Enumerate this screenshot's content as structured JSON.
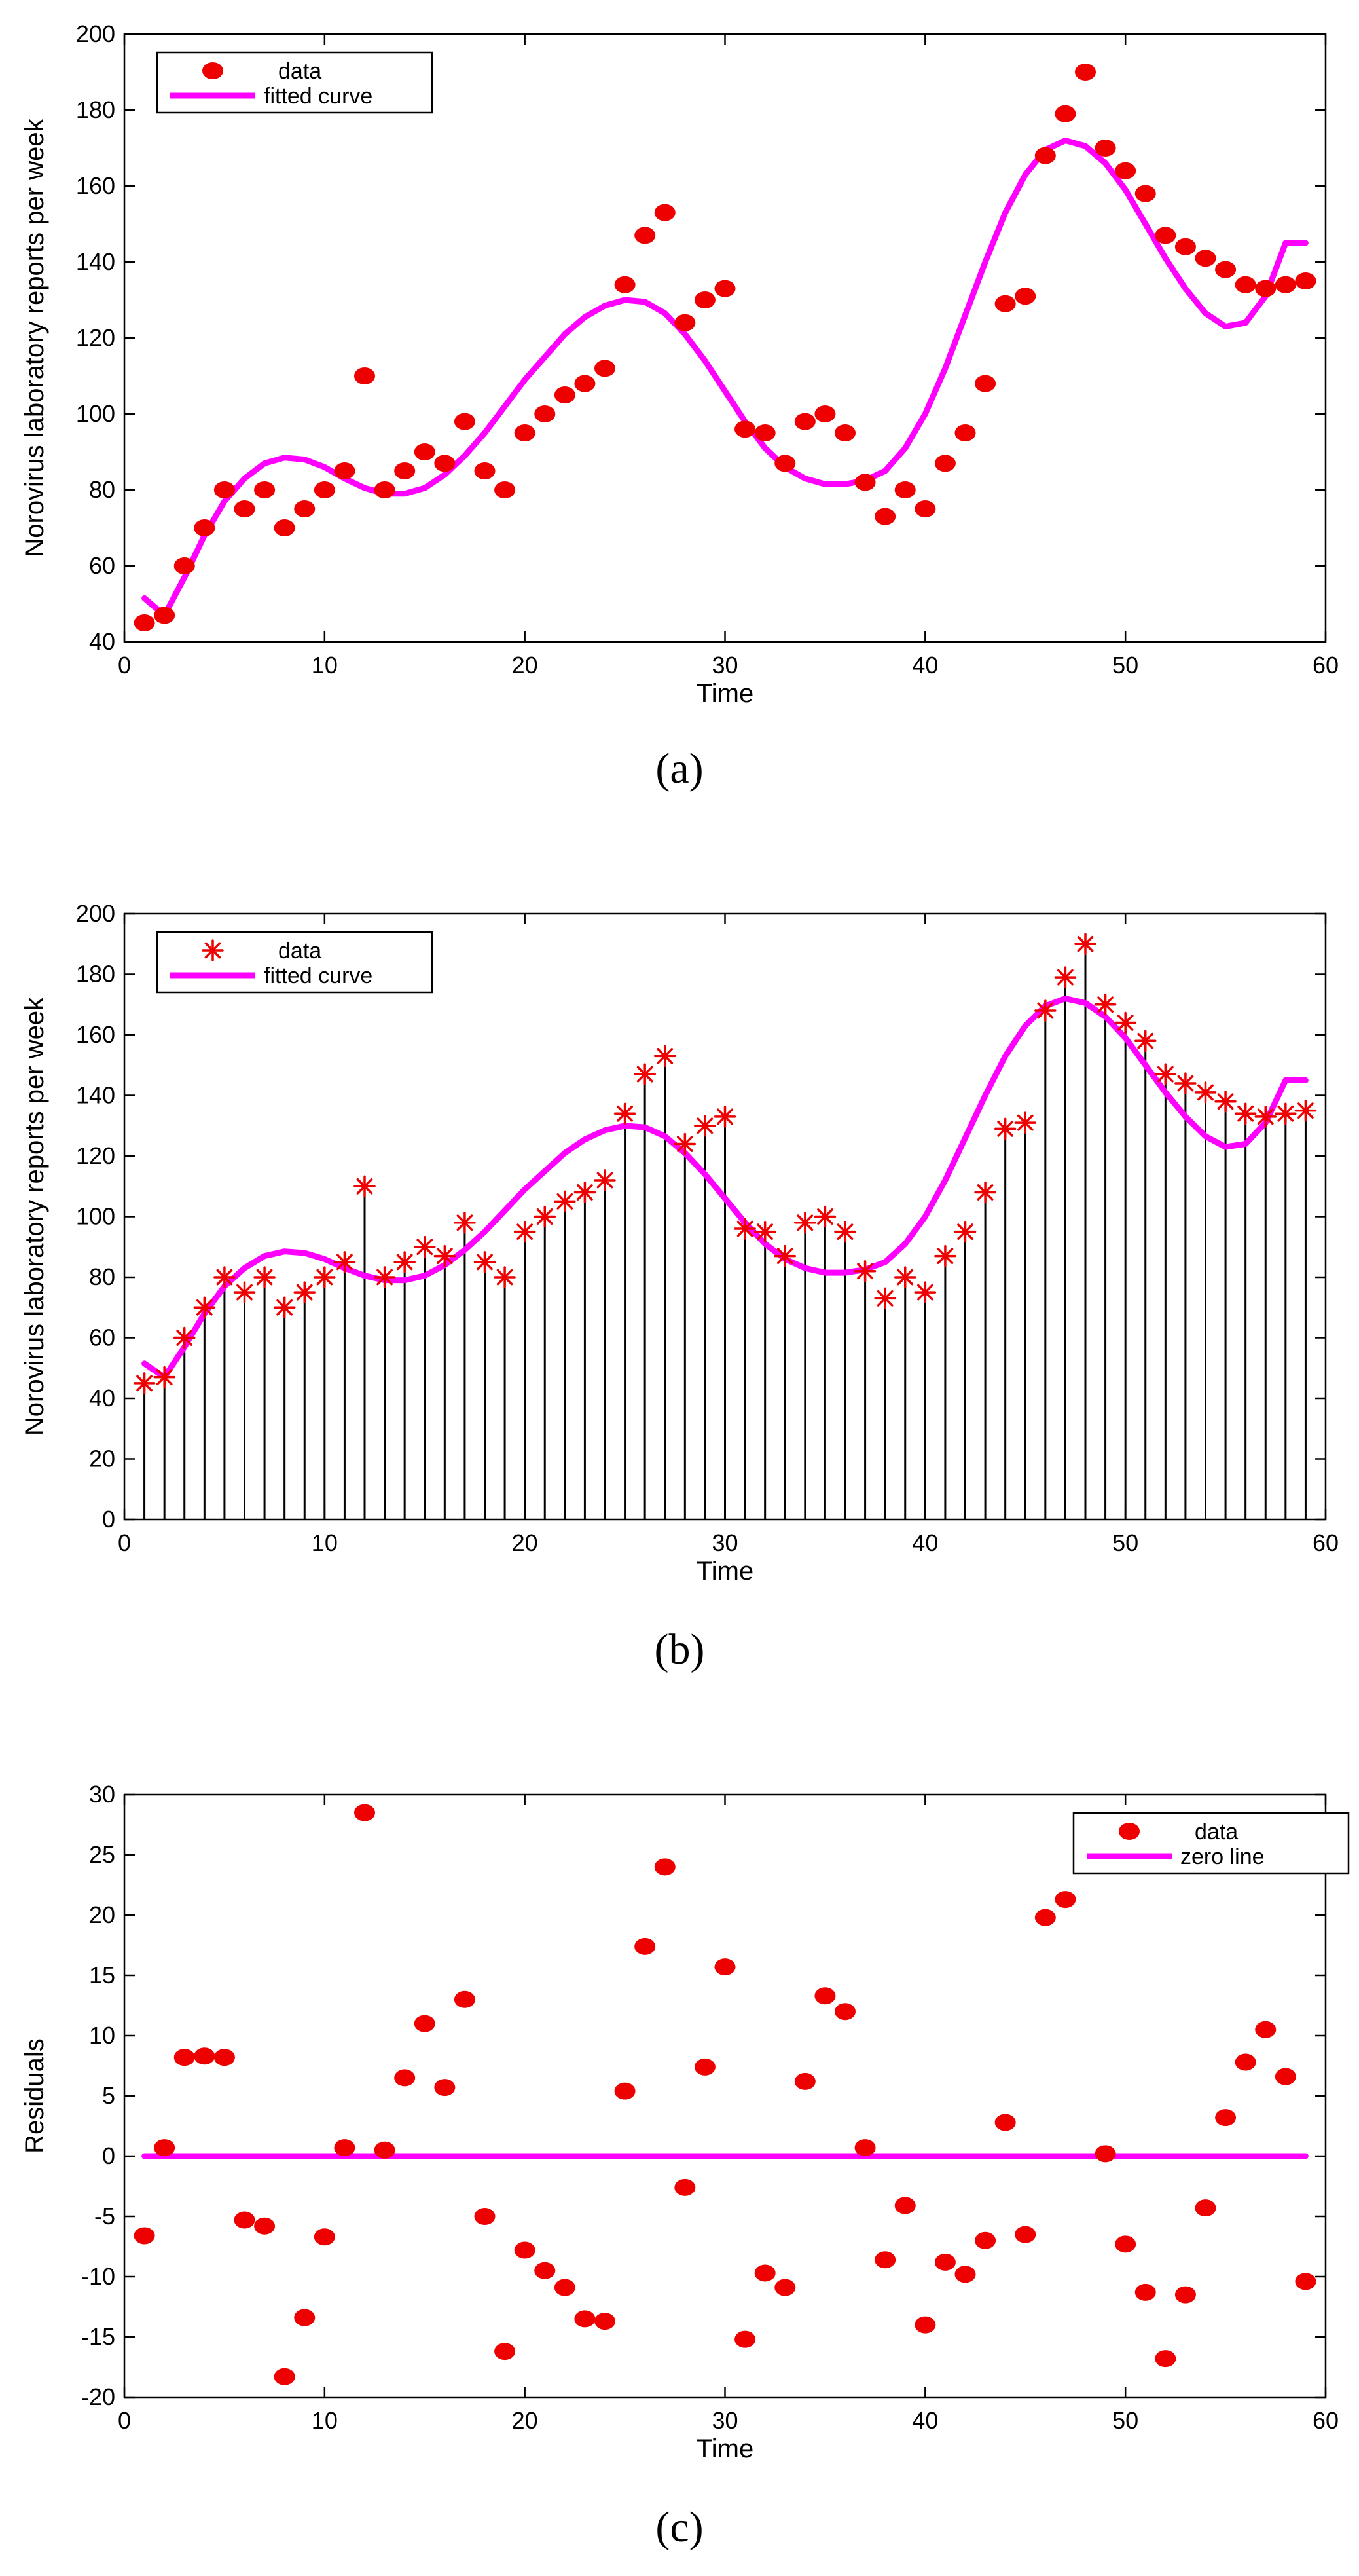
{
  "colors": {
    "data": "#ee0000",
    "fit": "#ff00ff",
    "stem": "#000000",
    "axis": "#000000"
  },
  "chart_data": [
    {
      "type": "scatter",
      "panel_label": "(a)",
      "marker": "ellipse",
      "stems": false,
      "xlabel": "Time",
      "ylabel": "Norovirus laboratory reports per week",
      "xlim": [
        0,
        60
      ],
      "ylim": [
        40,
        200
      ],
      "xticks": [
        0,
        10,
        20,
        30,
        40,
        50,
        60
      ],
      "yticks": [
        40,
        60,
        80,
        100,
        120,
        140,
        160,
        180,
        200
      ],
      "legend": {
        "position": "top-left",
        "labels": [
          "data",
          "fitted curve"
        ]
      },
      "x": [
        1,
        2,
        3,
        4,
        5,
        6,
        7,
        8,
        9,
        10,
        11,
        12,
        13,
        14,
        15,
        16,
        17,
        18,
        19,
        20,
        21,
        22,
        23,
        24,
        25,
        26,
        27,
        28,
        29,
        30,
        31,
        32,
        33,
        34,
        35,
        36,
        37,
        38,
        39,
        40,
        41,
        42,
        43,
        44,
        45,
        46,
        47,
        48,
        49,
        50,
        51,
        52,
        53,
        54,
        55,
        56,
        57,
        58,
        59
      ],
      "values": [
        45,
        47,
        60,
        70,
        80,
        75,
        80,
        70,
        75,
        80,
        85,
        110,
        80,
        85,
        90,
        87,
        98,
        85,
        80,
        95,
        100,
        105,
        108,
        112,
        134,
        147,
        153,
        124,
        130,
        133,
        96,
        95,
        87,
        98,
        100,
        95,
        82,
        73,
        80,
        75,
        87,
        95,
        108,
        129,
        131,
        168,
        179,
        190,
        170,
        164,
        158,
        147,
        144,
        141,
        138,
        134,
        133,
        134,
        135
      ],
      "series": [
        {
          "name": "fitted curve",
          "x": [
            1,
            2,
            3,
            4,
            5,
            6,
            7,
            8,
            9,
            10,
            11,
            12,
            13,
            14,
            15,
            16,
            17,
            18,
            19,
            20,
            21,
            22,
            23,
            24,
            25,
            26,
            27,
            28,
            29,
            30,
            31,
            32,
            33,
            34,
            35,
            36,
            37,
            38,
            39,
            40,
            41,
            42,
            43,
            44,
            45,
            46,
            47,
            48,
            49,
            50,
            51,
            52,
            53,
            54,
            55,
            56,
            57,
            58,
            59
          ],
          "values": [
            51.5,
            47,
            57,
            68,
            77,
            83,
            87,
            88.5,
            88,
            86,
            83,
            80.5,
            79,
            79,
            80.5,
            84,
            89,
            95,
            102,
            109,
            115,
            121,
            125.5,
            128.5,
            130,
            129.5,
            126.5,
            121,
            114,
            106,
            98,
            91,
            86,
            83,
            81.5,
            81.5,
            82.5,
            85,
            91,
            100,
            112,
            126,
            140,
            153,
            163,
            169.5,
            172,
            170.5,
            166,
            159,
            150,
            141,
            133,
            126.5,
            123,
            124,
            131,
            145,
            145
          ]
        }
      ]
    },
    {
      "type": "scatter",
      "panel_label": "(b)",
      "marker": "asterisk",
      "stems": true,
      "xlabel": "Time",
      "ylabel": "Norovirus laboratory reports per week",
      "xlim": [
        0,
        60
      ],
      "ylim": [
        0,
        200
      ],
      "xticks": [
        0,
        10,
        20,
        30,
        40,
        50,
        60
      ],
      "yticks": [
        0,
        20,
        40,
        60,
        80,
        100,
        120,
        140,
        160,
        180,
        200
      ],
      "legend": {
        "position": "top-left",
        "labels": [
          "data",
          "fitted curve"
        ]
      },
      "x": [
        1,
        2,
        3,
        4,
        5,
        6,
        7,
        8,
        9,
        10,
        11,
        12,
        13,
        14,
        15,
        16,
        17,
        18,
        19,
        20,
        21,
        22,
        23,
        24,
        25,
        26,
        27,
        28,
        29,
        30,
        31,
        32,
        33,
        34,
        35,
        36,
        37,
        38,
        39,
        40,
        41,
        42,
        43,
        44,
        45,
        46,
        47,
        48,
        49,
        50,
        51,
        52,
        53,
        54,
        55,
        56,
        57,
        58,
        59
      ],
      "values": [
        45,
        47,
        60,
        70,
        80,
        75,
        80,
        70,
        75,
        80,
        85,
        110,
        80,
        85,
        90,
        87,
        98,
        85,
        80,
        95,
        100,
        105,
        108,
        112,
        134,
        147,
        153,
        124,
        130,
        133,
        96,
        95,
        87,
        98,
        100,
        95,
        82,
        73,
        80,
        75,
        87,
        95,
        108,
        129,
        131,
        168,
        179,
        190,
        170,
        164,
        158,
        147,
        144,
        141,
        138,
        134,
        133,
        134,
        135
      ],
      "series": [
        {
          "name": "fitted curve",
          "x": [
            1,
            2,
            3,
            4,
            5,
            6,
            7,
            8,
            9,
            10,
            11,
            12,
            13,
            14,
            15,
            16,
            17,
            18,
            19,
            20,
            21,
            22,
            23,
            24,
            25,
            26,
            27,
            28,
            29,
            30,
            31,
            32,
            33,
            34,
            35,
            36,
            37,
            38,
            39,
            40,
            41,
            42,
            43,
            44,
            45,
            46,
            47,
            48,
            49,
            50,
            51,
            52,
            53,
            54,
            55,
            56,
            57,
            58,
            59
          ],
          "values": [
            51.5,
            47,
            57,
            68,
            77,
            83,
            87,
            88.5,
            88,
            86,
            83,
            80.5,
            79,
            79,
            80.5,
            84,
            89,
            95,
            102,
            109,
            115,
            121,
            125.5,
            128.5,
            130,
            129.5,
            126.5,
            121,
            114,
            106,
            98,
            91,
            86,
            83,
            81.5,
            81.5,
            82.5,
            85,
            91,
            100,
            112,
            126,
            140,
            153,
            163,
            169.5,
            172,
            170.5,
            166,
            159,
            150,
            141,
            133,
            126.5,
            123,
            124,
            131,
            145,
            145
          ]
        }
      ]
    },
    {
      "type": "scatter",
      "panel_label": "(c)",
      "marker": "ellipse",
      "stems": false,
      "xlabel": "Time",
      "ylabel": "Residuals",
      "xlim": [
        0,
        60
      ],
      "ylim": [
        -20,
        30
      ],
      "xticks": [
        0,
        10,
        20,
        30,
        40,
        50,
        60
      ],
      "yticks": [
        -20,
        -15,
        -10,
        -5,
        0,
        5,
        10,
        15,
        20,
        25,
        30
      ],
      "legend": {
        "position": "top-right",
        "labels": [
          "data",
          "zero line"
        ]
      },
      "x": [
        1,
        2,
        3,
        4,
        5,
        6,
        7,
        8,
        9,
        10,
        11,
        12,
        13,
        14,
        15,
        16,
        17,
        18,
        19,
        20,
        21,
        22,
        23,
        24,
        25,
        26,
        27,
        28,
        29,
        30,
        31,
        32,
        33,
        34,
        35,
        36,
        37,
        38,
        39,
        40,
        41,
        42,
        43,
        44,
        45,
        46,
        47,
        48,
        49,
        50,
        51,
        52,
        53,
        54,
        55,
        56,
        57,
        58,
        59
      ],
      "values": [
        -6.6,
        0.7,
        8.2,
        8.3,
        8.2,
        -5.3,
        -5.8,
        -18.3,
        -13.4,
        -6.7,
        0.7,
        28.5,
        0.5,
        6.5,
        11,
        5.7,
        13,
        -5,
        -16.2,
        -7.8,
        -9.5,
        -10.9,
        -13.5,
        -13.7,
        5.4,
        17.4,
        24,
        -2.6,
        7.4,
        15.7,
        -15.2,
        -9.7,
        -10.9,
        6.2,
        13.3,
        12,
        0.7,
        -8.6,
        -4.1,
        -14,
        -8.8,
        -9.8,
        -7,
        2.8,
        -6.5,
        19.8,
        21.3,
        null,
        0.2,
        -7.3,
        -11.3,
        -16.8,
        -11.5,
        -4.3,
        3.2,
        7.8,
        10.5,
        6.6,
        -10.4
      ],
      "series": [
        {
          "name": "zero line",
          "x": [
            1,
            59
          ],
          "values": [
            0,
            0
          ]
        }
      ]
    }
  ]
}
